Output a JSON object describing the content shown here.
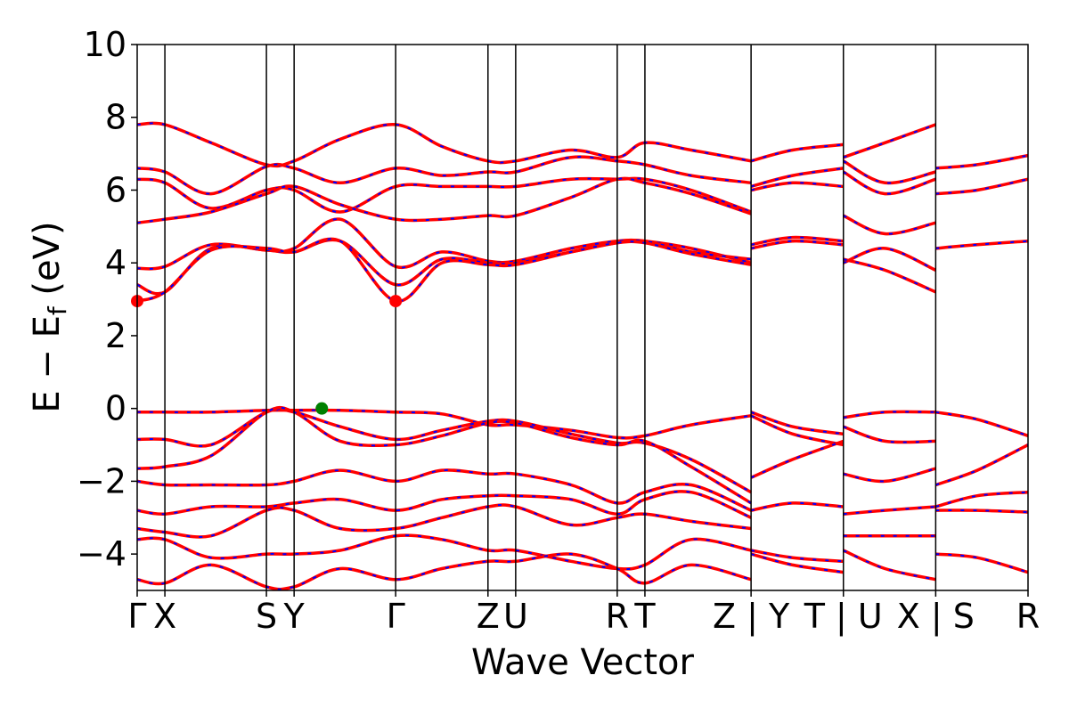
{
  "chart_data": {
    "type": "line",
    "title": "",
    "xlabel": "Wave Vector",
    "ylabel_main": "E − E",
    "ylabel_sub": "f",
    "ylabel_unit": " (eV)",
    "ylim": [
      -5,
      10
    ],
    "yticks": [
      -4,
      -2,
      0,
      2,
      4,
      6,
      8,
      10
    ],
    "ytick_labels": [
      "−4",
      "−2",
      "0",
      "2",
      "4",
      "6",
      "8",
      "10"
    ],
    "path_distances": [
      0,
      0.03,
      0.14,
      0.17,
      0.28,
      0.38,
      0.41,
      0.52,
      0.55,
      0.665,
      0.765,
      0.865,
      0.965
    ],
    "high_symmetry_labels": [
      "Γ",
      "X",
      "S",
      "Y",
      "Γ",
      "Z",
      "U",
      "R",
      "T",
      "Z | Y",
      "T | U",
      "X | S",
      "R"
    ],
    "segment_breaks": [
      0.665,
      0.765,
      0.865
    ],
    "colors": {
      "line_primary": "#ff0000",
      "line_secondary": "#0000ff",
      "vbm": "#008000",
      "cbm": "#ff0000",
      "frame": "#000000"
    },
    "conduction_band_minimum": {
      "k": 0.28,
      "E": 2.95,
      "also_at_k": 0.0
    },
    "valence_band_maximum": {
      "k": 0.2,
      "E": 0.0
    },
    "series": [
      {
        "k": [
          0,
          0.03,
          0.08,
          0.14,
          0.17,
          0.22,
          0.28,
          0.33,
          0.38,
          0.41,
          0.47,
          0.52,
          0.55,
          0.6,
          0.665
        ],
        "E": [
          7.8,
          7.8,
          7.3,
          6.7,
          6.8,
          7.4,
          7.8,
          7.2,
          6.8,
          6.8,
          7.1,
          6.9,
          7.3,
          7.1,
          6.8
        ]
      },
      {
        "k": [
          0,
          0.03,
          0.08,
          0.14,
          0.17,
          0.22,
          0.28,
          0.33,
          0.38,
          0.41,
          0.47,
          0.52,
          0.55,
          0.6,
          0.665
        ],
        "E": [
          6.6,
          6.5,
          5.9,
          6.65,
          6.6,
          6.2,
          6.6,
          6.4,
          6.5,
          6.5,
          6.9,
          6.8,
          6.7,
          6.4,
          6.2
        ]
      },
      {
        "k": [
          0,
          0.03,
          0.08,
          0.14,
          0.17,
          0.22,
          0.28,
          0.33,
          0.38,
          0.41,
          0.47,
          0.52,
          0.55,
          0.6,
          0.665
        ],
        "E": [
          6.3,
          6.2,
          5.5,
          6.0,
          6.0,
          5.4,
          6.1,
          6.1,
          6.1,
          6.1,
          6.3,
          6.3,
          6.3,
          6.0,
          5.4
        ]
      },
      {
        "k": [
          0,
          0.03,
          0.08,
          0.14,
          0.17,
          0.22,
          0.28,
          0.33,
          0.38,
          0.41,
          0.47,
          0.52,
          0.55,
          0.6,
          0.665
        ],
        "E": [
          5.1,
          5.2,
          5.4,
          5.9,
          6.1,
          5.6,
          5.2,
          5.2,
          5.3,
          5.3,
          5.8,
          6.3,
          6.2,
          5.9,
          5.35
        ]
      },
      {
        "k": [
          0,
          0.03,
          0.08,
          0.14,
          0.17,
          0.22,
          0.28,
          0.33,
          0.38,
          0.41,
          0.47,
          0.52,
          0.55,
          0.6,
          0.665
        ],
        "E": [
          3.85,
          3.9,
          4.5,
          4.35,
          4.4,
          5.2,
          3.9,
          4.3,
          4.05,
          4.05,
          4.4,
          4.6,
          4.6,
          4.4,
          4.0
        ]
      },
      {
        "k": [
          0,
          0.03,
          0.08,
          0.14,
          0.17,
          0.22,
          0.28,
          0.33,
          0.38,
          0.41,
          0.47,
          0.52,
          0.55,
          0.6,
          0.665
        ],
        "E": [
          3.4,
          3.2,
          4.4,
          4.35,
          4.3,
          4.6,
          3.4,
          4.1,
          4.0,
          4.0,
          4.3,
          4.55,
          4.6,
          4.3,
          4.1
        ]
      },
      {
        "k": [
          0,
          0.03,
          0.08,
          0.14,
          0.17,
          0.22,
          0.28,
          0.33,
          0.38,
          0.41,
          0.47,
          0.52,
          0.55,
          0.6,
          0.665
        ],
        "E": [
          2.95,
          3.2,
          4.35,
          4.4,
          4.3,
          4.6,
          2.95,
          4.0,
          3.95,
          3.95,
          4.3,
          4.55,
          4.55,
          4.25,
          3.95
        ]
      },
      {
        "k": [
          0,
          0.03,
          0.08,
          0.14,
          0.17,
          0.22,
          0.28,
          0.33,
          0.38,
          0.41,
          0.47,
          0.52,
          0.55,
          0.6,
          0.665
        ],
        "E": [
          -0.1,
          -0.1,
          -0.1,
          -0.05,
          -0.05,
          -0.05,
          -0.1,
          -0.15,
          -0.45,
          -0.45,
          -0.6,
          -0.8,
          -0.75,
          -0.45,
          -0.2
        ]
      },
      {
        "k": [
          0,
          0.03,
          0.08,
          0.14,
          0.17,
          0.22,
          0.28,
          0.33,
          0.38,
          0.41,
          0.47,
          0.52,
          0.55,
          0.6,
          0.665
        ],
        "E": [
          -0.85,
          -0.85,
          -1.0,
          -0.1,
          -0.1,
          -0.5,
          -0.85,
          -0.6,
          -0.35,
          -0.35,
          -0.7,
          -0.95,
          -0.95,
          -1.4,
          -2.3
        ]
      },
      {
        "k": [
          0,
          0.03,
          0.08,
          0.14,
          0.17,
          0.22,
          0.28,
          0.33,
          0.38,
          0.41,
          0.47,
          0.52,
          0.55,
          0.6,
          0.665
        ],
        "E": [
          -1.65,
          -1.6,
          -1.3,
          -0.1,
          -0.1,
          -0.9,
          -1.0,
          -0.75,
          -0.4,
          -0.4,
          -0.8,
          -1.0,
          -0.9,
          -1.6,
          -2.6
        ]
      },
      {
        "k": [
          0,
          0.03,
          0.08,
          0.14,
          0.17,
          0.22,
          0.28,
          0.33,
          0.38,
          0.41,
          0.47,
          0.52,
          0.55,
          0.6,
          0.665
        ],
        "E": [
          -2.0,
          -2.1,
          -2.1,
          -2.1,
          -2.0,
          -1.7,
          -2.0,
          -1.7,
          -1.8,
          -1.8,
          -2.1,
          -2.6,
          -2.3,
          -2.1,
          -2.8
        ]
      },
      {
        "k": [
          0,
          0.03,
          0.08,
          0.14,
          0.17,
          0.22,
          0.28,
          0.33,
          0.38,
          0.41,
          0.47,
          0.52,
          0.55,
          0.6,
          0.665
        ],
        "E": [
          -2.8,
          -2.9,
          -2.7,
          -2.7,
          -2.6,
          -2.5,
          -2.8,
          -2.5,
          -2.4,
          -2.4,
          -2.5,
          -2.9,
          -2.5,
          -2.3,
          -3.0
        ]
      },
      {
        "k": [
          0,
          0.03,
          0.08,
          0.14,
          0.17,
          0.22,
          0.28,
          0.33,
          0.38,
          0.41,
          0.47,
          0.52,
          0.55,
          0.6,
          0.665
        ],
        "E": [
          -3.3,
          -3.4,
          -3.5,
          -2.8,
          -2.8,
          -3.3,
          -3.3,
          -3.0,
          -2.7,
          -2.7,
          -3.2,
          -3.0,
          -2.9,
          -3.1,
          -3.3
        ]
      },
      {
        "k": [
          0,
          0.03,
          0.08,
          0.14,
          0.17,
          0.22,
          0.28,
          0.33,
          0.38,
          0.41,
          0.47,
          0.52,
          0.55,
          0.6,
          0.665
        ],
        "E": [
          -3.6,
          -3.6,
          -4.1,
          -4.0,
          -4.0,
          -3.9,
          -3.5,
          -3.6,
          -3.9,
          -3.9,
          -4.2,
          -4.4,
          -4.3,
          -3.6,
          -3.9
        ]
      },
      {
        "k": [
          0,
          0.03,
          0.08,
          0.14,
          0.17,
          0.22,
          0.28,
          0.33,
          0.38,
          0.41,
          0.47,
          0.52,
          0.55,
          0.6,
          0.665
        ],
        "E": [
          -4.7,
          -4.8,
          -4.3,
          -4.9,
          -4.9,
          -4.4,
          -4.7,
          -4.4,
          -4.2,
          -4.2,
          -4.0,
          -4.4,
          -4.8,
          -4.3,
          -4.7
        ]
      },
      {
        "k": [
          0.665,
          0.71,
          0.765
        ],
        "E": [
          4.5,
          4.7,
          4.6
        ]
      },
      {
        "k": [
          0.665,
          0.71,
          0.765
        ],
        "E": [
          4.4,
          4.6,
          4.5
        ]
      },
      {
        "k": [
          0.665,
          0.71,
          0.765
        ],
        "E": [
          6.1,
          6.4,
          6.6
        ]
      },
      {
        "k": [
          0.665,
          0.71,
          0.765
        ],
        "E": [
          6.0,
          6.2,
          6.1
        ]
      },
      {
        "k": [
          0.665,
          0.71,
          0.765
        ],
        "E": [
          6.8,
          7.1,
          7.25
        ]
      },
      {
        "k": [
          0.665,
          0.71,
          0.765
        ],
        "E": [
          -0.1,
          -0.5,
          -0.7
        ]
      },
      {
        "k": [
          0.665,
          0.71,
          0.765
        ],
        "E": [
          -0.2,
          -0.7,
          -1.0
        ]
      },
      {
        "k": [
          0.665,
          0.71,
          0.765
        ],
        "E": [
          -1.9,
          -1.4,
          -0.9
        ]
      },
      {
        "k": [
          0.665,
          0.71,
          0.765
        ],
        "E": [
          -2.8,
          -2.6,
          -2.7
        ]
      },
      {
        "k": [
          0.665,
          0.71,
          0.765
        ],
        "E": [
          -3.9,
          -4.1,
          -4.2
        ]
      },
      {
        "k": [
          0.665,
          0.71,
          0.765
        ],
        "E": [
          -4.0,
          -4.3,
          -4.5
        ]
      },
      {
        "k": [
          0.765,
          0.81,
          0.865
        ],
        "E": [
          6.8,
          6.2,
          6.5
        ]
      },
      {
        "k": [
          0.765,
          0.81,
          0.865
        ],
        "E": [
          6.5,
          5.9,
          6.3
        ]
      },
      {
        "k": [
          0.765,
          0.81,
          0.865
        ],
        "E": [
          6.9,
          7.3,
          7.8
        ]
      },
      {
        "k": [
          0.765,
          0.81,
          0.865
        ],
        "E": [
          5.3,
          4.8,
          5.1
        ]
      },
      {
        "k": [
          0.765,
          0.81,
          0.865
        ],
        "E": [
          4.0,
          4.4,
          3.8
        ]
      },
      {
        "k": [
          0.765,
          0.81,
          0.865
        ],
        "E": [
          4.1,
          3.8,
          3.2
        ]
      },
      {
        "k": [
          0.765,
          0.81,
          0.865
        ],
        "E": [
          -0.25,
          -0.1,
          -0.1
        ]
      },
      {
        "k": [
          0.765,
          0.81,
          0.865
        ],
        "E": [
          -0.5,
          -0.9,
          -0.9
        ]
      },
      {
        "k": [
          0.765,
          0.81,
          0.865
        ],
        "E": [
          -1.8,
          -2.0,
          -1.65
        ]
      },
      {
        "k": [
          0.765,
          0.81,
          0.865
        ],
        "E": [
          -2.9,
          -2.8,
          -2.7
        ]
      },
      {
        "k": [
          0.765,
          0.81,
          0.865
        ],
        "E": [
          -3.5,
          -3.5,
          -3.5
        ]
      },
      {
        "k": [
          0.765,
          0.81,
          0.865
        ],
        "E": [
          -3.9,
          -4.4,
          -4.7
        ]
      },
      {
        "k": [
          0.865,
          0.91,
          0.965
        ],
        "E": [
          6.6,
          6.7,
          6.95
        ]
      },
      {
        "k": [
          0.865,
          0.91,
          0.965
        ],
        "E": [
          5.9,
          6.0,
          6.3
        ]
      },
      {
        "k": [
          0.865,
          0.91,
          0.965
        ],
        "E": [
          4.4,
          4.5,
          4.6
        ]
      },
      {
        "k": [
          0.865,
          0.91,
          0.965
        ],
        "E": [
          -0.1,
          -0.3,
          -0.75
        ]
      },
      {
        "k": [
          0.865,
          0.91,
          0.965
        ],
        "E": [
          -2.1,
          -1.7,
          -1.0
        ]
      },
      {
        "k": [
          0.865,
          0.91,
          0.965
        ],
        "E": [
          -2.7,
          -2.4,
          -2.3
        ]
      },
      {
        "k": [
          0.865,
          0.91,
          0.965
        ],
        "E": [
          -2.8,
          -2.8,
          -2.85
        ]
      },
      {
        "k": [
          0.865,
          0.91,
          0.965
        ],
        "E": [
          -4.0,
          -4.1,
          -4.5
        ]
      }
    ]
  }
}
